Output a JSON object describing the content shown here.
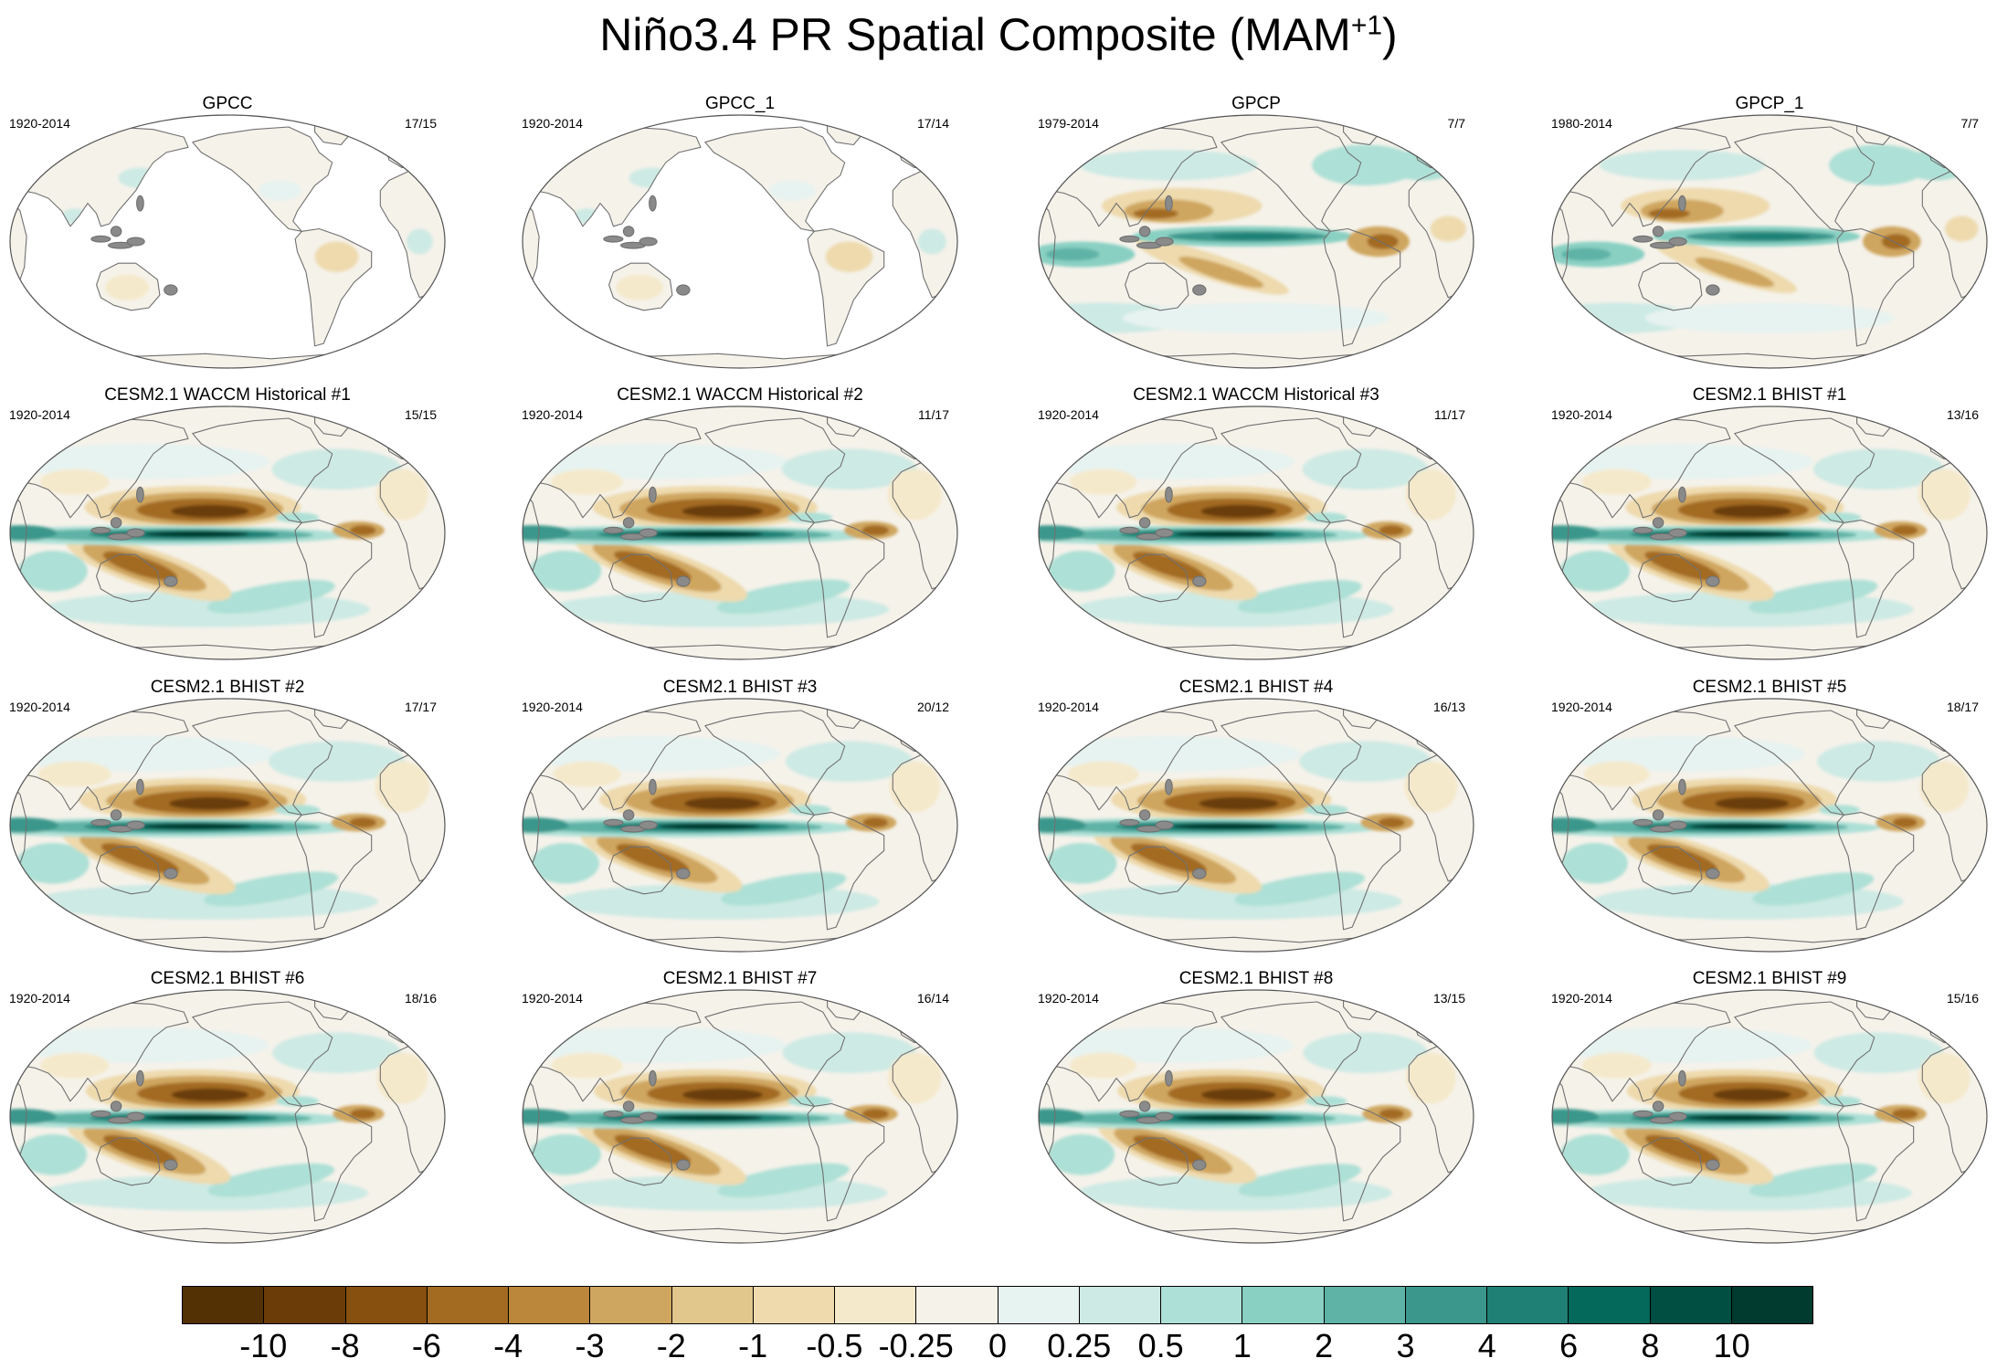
{
  "figure": {
    "title_main": "Niño3.4 PR Spatial Composite (MAM",
    "title_sup": "+1",
    "title_close": ")"
  },
  "panels": [
    {
      "title": "GPCC",
      "period": "1920-2014",
      "counts": "17/15"
    },
    {
      "title": "GPCC_1",
      "period": "1920-2014",
      "counts": "17/14"
    },
    {
      "title": "GPCP",
      "period": "1979-2014",
      "counts": "7/7"
    },
    {
      "title": "GPCP_1",
      "period": "1980-2014",
      "counts": "7/7"
    },
    {
      "title": "CESM2.1 WACCM Historical #1",
      "period": "1920-2014",
      "counts": "15/15"
    },
    {
      "title": "CESM2.1 WACCM Historical #2",
      "period": "1920-2014",
      "counts": "11/17"
    },
    {
      "title": "CESM2.1 WACCM Historical #3",
      "period": "1920-2014",
      "counts": "11/17"
    },
    {
      "title": "CESM2.1 BHIST #1",
      "period": "1920-2014",
      "counts": "13/16"
    },
    {
      "title": "CESM2.1 BHIST #2",
      "period": "1920-2014",
      "counts": "17/17"
    },
    {
      "title": "CESM2.1 BHIST #3",
      "period": "1920-2014",
      "counts": "20/12"
    },
    {
      "title": "CESM2.1 BHIST #4",
      "period": "1920-2014",
      "counts": "16/13"
    },
    {
      "title": "CESM2.1 BHIST #5",
      "period": "1920-2014",
      "counts": "18/17"
    },
    {
      "title": "CESM2.1 BHIST #6",
      "period": "1920-2014",
      "counts": "18/16"
    },
    {
      "title": "CESM2.1 BHIST #7",
      "period": "1920-2014",
      "counts": "16/14"
    },
    {
      "title": "CESM2.1 BHIST #8",
      "period": "1920-2014",
      "counts": "13/15"
    },
    {
      "title": "CESM2.1 BHIST #9",
      "period": "1920-2014",
      "counts": "15/16"
    }
  ],
  "colorbar": {
    "labels": [
      "-10",
      "-8",
      "-6",
      "-4",
      "-3",
      "-2",
      "-1",
      "-0.5",
      "-0.25",
      "0",
      "0.25",
      "0.5",
      "1",
      "2",
      "3",
      "4",
      "6",
      "8",
      "10"
    ],
    "colors": [
      "#543005",
      "#6b3c08",
      "#87500e",
      "#a36b21",
      "#bb873a",
      "#cfa65f",
      "#e1c78c",
      "#eedaad",
      "#f5e9cb",
      "#f5f2ea",
      "#e7f3f0",
      "#cdeae4",
      "#ade0d6",
      "#89d0c3",
      "#5eb2a6",
      "#3b978b",
      "#1f8075",
      "#04685b",
      "#014f42",
      "#013a2f"
    ]
  }
}
